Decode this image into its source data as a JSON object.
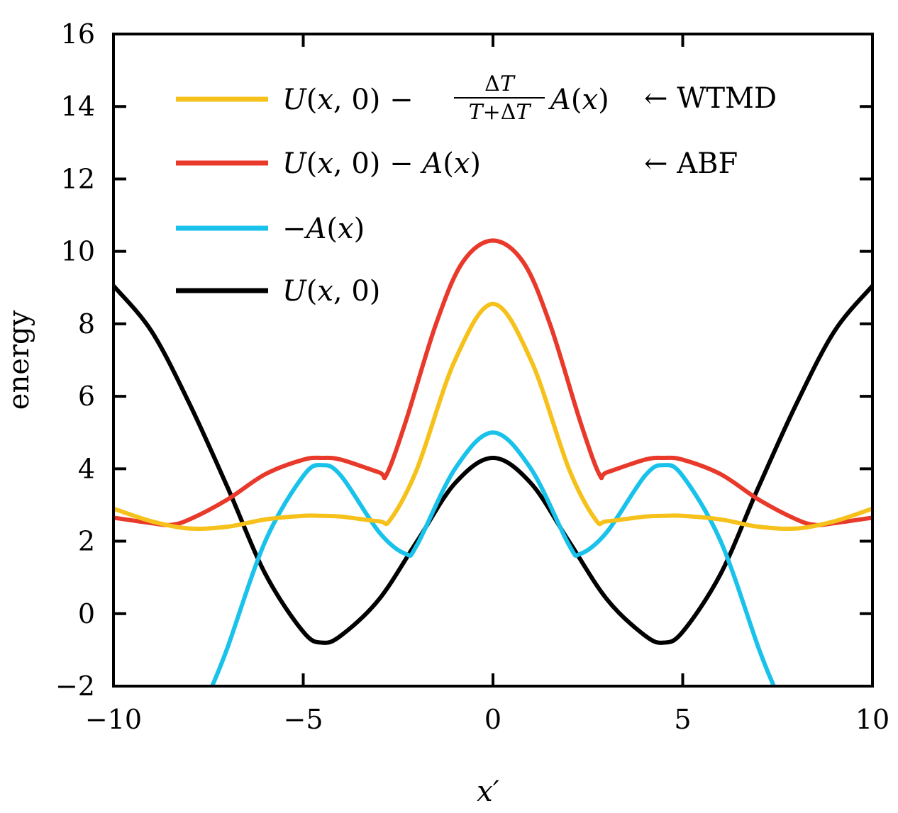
{
  "chart_data": {
    "type": "line",
    "title": "",
    "xlabel": "x′",
    "ylabel": "energy",
    "xlim": [
      -10,
      10
    ],
    "ylim": [
      -2,
      16
    ],
    "xticks": [
      -10,
      -5,
      0,
      5,
      10
    ],
    "xtick_labels": [
      "−10",
      "−5",
      "0",
      "5",
      "10"
    ],
    "yticks": [
      -2,
      0,
      2,
      4,
      6,
      8,
      10,
      12,
      14,
      16
    ],
    "ytick_labels": [
      "−2",
      "0",
      "2",
      "4",
      "6",
      "8",
      "10",
      "12",
      "14",
      "16"
    ],
    "legend_position": "top-left",
    "series": [
      {
        "name": "U(x,0) − ΔT/(T+ΔT) A(x)",
        "annotation": "← WTMD",
        "color": "#f5c11a",
        "x": [
          -10,
          -9,
          -8,
          -7,
          -6,
          -5,
          -4.5,
          -4,
          -3,
          -2.7,
          -2,
          -1,
          0,
          1,
          2,
          2.7,
          3,
          4,
          4.5,
          5,
          6,
          7,
          8,
          9,
          10
        ],
        "y": [
          2.9,
          2.55,
          2.35,
          2.4,
          2.6,
          2.7,
          2.7,
          2.68,
          2.55,
          2.6,
          4.0,
          7.0,
          8.55,
          7.0,
          4.0,
          2.6,
          2.55,
          2.68,
          2.7,
          2.7,
          2.6,
          2.4,
          2.35,
          2.55,
          2.9
        ]
      },
      {
        "name": "U(x,0) − A(x)",
        "annotation": "← ABF",
        "color": "#e8392a",
        "x": [
          -10,
          -9,
          -8.5,
          -8,
          -7,
          -6,
          -5,
          -4.5,
          -4,
          -3,
          -2.8,
          -2.3,
          -1.5,
          -0.8,
          0,
          0.8,
          1.5,
          2.3,
          2.8,
          3,
          4,
          4.5,
          5,
          6,
          7,
          8,
          8.5,
          9,
          10
        ],
        "y": [
          2.65,
          2.5,
          2.45,
          2.6,
          3.15,
          3.85,
          4.25,
          4.3,
          4.25,
          3.9,
          3.85,
          5.3,
          8.0,
          9.7,
          10.3,
          9.7,
          8.0,
          5.3,
          3.85,
          3.9,
          4.25,
          4.3,
          4.25,
          3.85,
          3.15,
          2.6,
          2.45,
          2.5,
          2.65
        ]
      },
      {
        "name": "−A(x)",
        "color": "#19c2ea",
        "x": [
          -7.4,
          -7,
          -6,
          -5,
          -4.5,
          -4,
          -3,
          -2.3,
          -2,
          -1,
          0,
          1,
          2,
          2.3,
          3,
          4,
          4.5,
          5,
          6,
          7,
          7.4
        ],
        "y": [
          -2,
          -0.95,
          2.0,
          3.8,
          4.1,
          3.8,
          2.25,
          1.65,
          1.9,
          4.0,
          5.0,
          4.0,
          1.9,
          1.65,
          2.25,
          3.8,
          4.1,
          3.8,
          2.0,
          -0.95,
          -2
        ]
      },
      {
        "name": "U(x,0)",
        "color": "#000000",
        "x": [
          -10,
          -9,
          -8,
          -7,
          -6,
          -5,
          -4.5,
          -4,
          -3,
          -2,
          -1,
          0,
          1,
          2,
          3,
          4,
          4.5,
          5,
          6,
          7,
          8,
          9,
          10
        ],
        "y": [
          9.05,
          7.8,
          5.8,
          3.5,
          1.1,
          -0.5,
          -0.8,
          -0.6,
          0.4,
          2.0,
          3.6,
          4.3,
          3.6,
          2.0,
          0.4,
          -0.6,
          -0.8,
          -0.5,
          1.1,
          3.5,
          5.8,
          7.8,
          9.05
        ]
      }
    ]
  }
}
